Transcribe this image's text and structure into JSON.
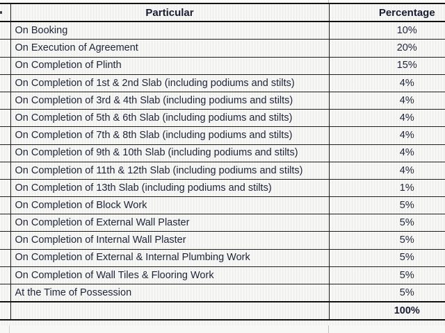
{
  "table": {
    "headers": {
      "sr": "",
      "particular": "Particular",
      "percentage": "Percentage"
    },
    "rows": [
      {
        "particular": "On Booking",
        "percentage": "10%"
      },
      {
        "particular": "On Execution of Agreement",
        "percentage": "20%"
      },
      {
        "particular": "On Completion of Plinth",
        "percentage": "15%"
      },
      {
        "particular": "On Completion of 1st & 2nd Slab (including podiums and stilts)",
        "percentage": "4%"
      },
      {
        "particular": "On Completion of 3rd & 4th Slab (including podiums and stilts)",
        "percentage": "4%"
      },
      {
        "particular": "On Completion of 5th & 6th Slab (including podiums and stilts)",
        "percentage": "4%"
      },
      {
        "particular": "On Completion of 7th & 8th Slab (including podiums and stilts)",
        "percentage": "4%"
      },
      {
        "particular": "On Completion of 9th & 10th Slab (including podiums and stilts)",
        "percentage": "4%"
      },
      {
        "particular": "On Completion of 11th & 12th Slab (including podiums and stilts)",
        "percentage": "4%"
      },
      {
        "particular": "On Completion of 13th Slab (including podiums and stilts)",
        "percentage": "1%"
      },
      {
        "particular": "On Completion of Block Work",
        "percentage": "5%"
      },
      {
        "particular": "On Completion of External Wall Plaster",
        "percentage": "5%"
      },
      {
        "particular": "On Completion of Internal Wall Plaster",
        "percentage": "5%"
      },
      {
        "particular": "On Completion of External & Internal Plumbing Work",
        "percentage": "5%"
      },
      {
        "particular": "On Completion of Wall Tiles & Flooring Work",
        "percentage": "5%"
      },
      {
        "particular": "At the Time of Possession",
        "percentage": "5%"
      }
    ],
    "total_row": {
      "particular": "",
      "percentage": "100%"
    }
  },
  "colors": {
    "cell_background": "#f4f4f2",
    "border": "#141414",
    "text": "#20253a"
  }
}
